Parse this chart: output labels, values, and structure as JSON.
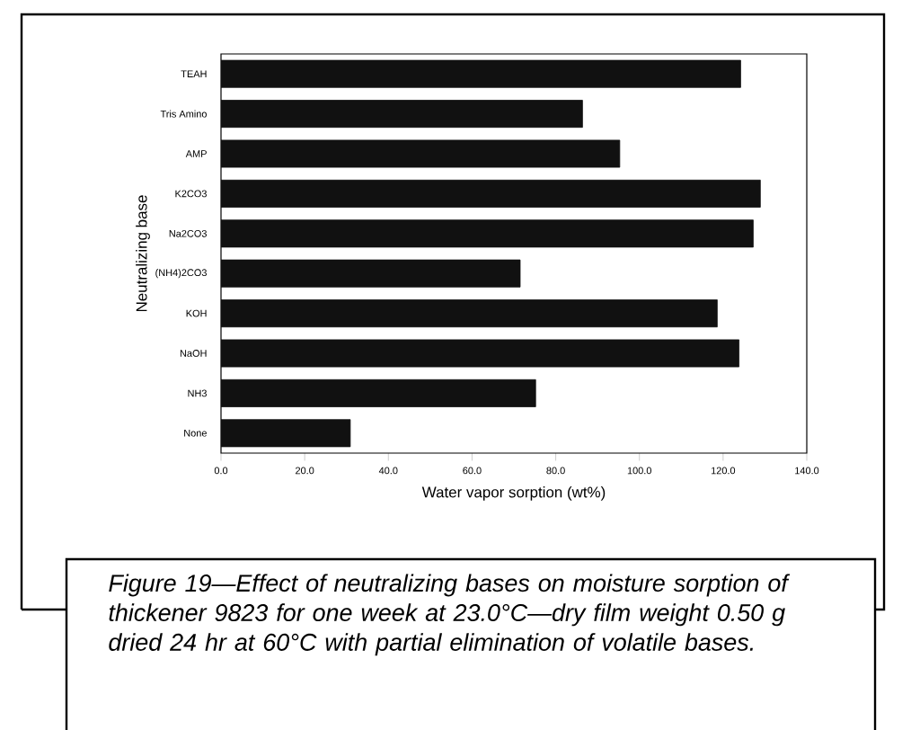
{
  "chart_data": {
    "type": "bar",
    "orientation": "horizontal",
    "categories": [
      "TEAH",
      "Tris Amino",
      "AMP",
      "K2CO3",
      "Na2CO3",
      "(NH4)2CO3",
      "KOH",
      "NaOH",
      "NH3",
      "None"
    ],
    "values": [
      124.2,
      86.4,
      95.3,
      128.9,
      127.2,
      71.5,
      118.6,
      123.8,
      75.2,
      30.9
    ],
    "color": "#111111",
    "xlim": [
      0,
      140
    ],
    "xticks": [
      {
        "value": 0,
        "label": "0.0"
      },
      {
        "value": 20,
        "label": "20.0"
      },
      {
        "value": 40,
        "label": "40.0"
      },
      {
        "value": 60,
        "label": "60.0"
      },
      {
        "value": 80,
        "label": "80.0"
      },
      {
        "value": 100,
        "label": "100.0"
      },
      {
        "value": 120,
        "label": "120.0"
      },
      {
        "value": 140,
        "label": "140.0"
      }
    ],
    "xlabel": "Water vapor sorption (wt%)",
    "ylabel": "Neutralizing base",
    "annotations": [
      "*Figure 19—Effect of neutralizing bases on moisture sorption of thickener 9823 for one week at 23.0°C—dry film weight 0.50 g dried 24 hr at 60°C with partial elimination of volatile bases.*"
    ]
  }
}
